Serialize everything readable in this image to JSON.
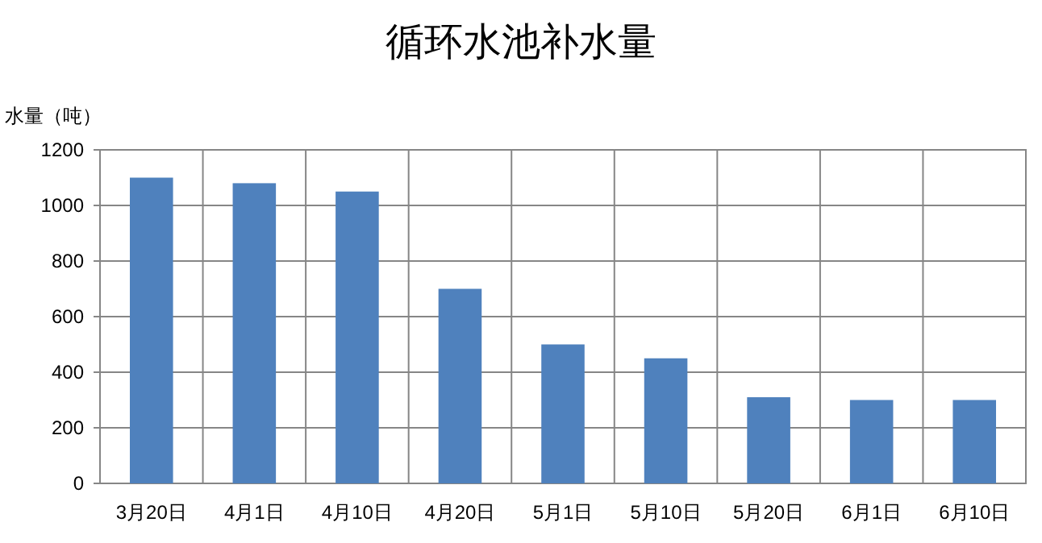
{
  "chart_data": {
    "type": "bar",
    "title": "循环水池补水量",
    "ylabel": "水量（吨）",
    "categories": [
      "3月20日",
      "4月1日",
      "4月10日",
      "4月20日",
      "5月1日",
      "5月10日",
      "5月20日",
      "6月1日",
      "6月10日"
    ],
    "values": [
      1100,
      1080,
      1050,
      700,
      500,
      450,
      310,
      300,
      300
    ],
    "color": "#4f81bd",
    "ylim": [
      0,
      1200
    ],
    "yticks": [
      0,
      200,
      400,
      600,
      800,
      1000,
      1200
    ],
    "grid": true
  }
}
